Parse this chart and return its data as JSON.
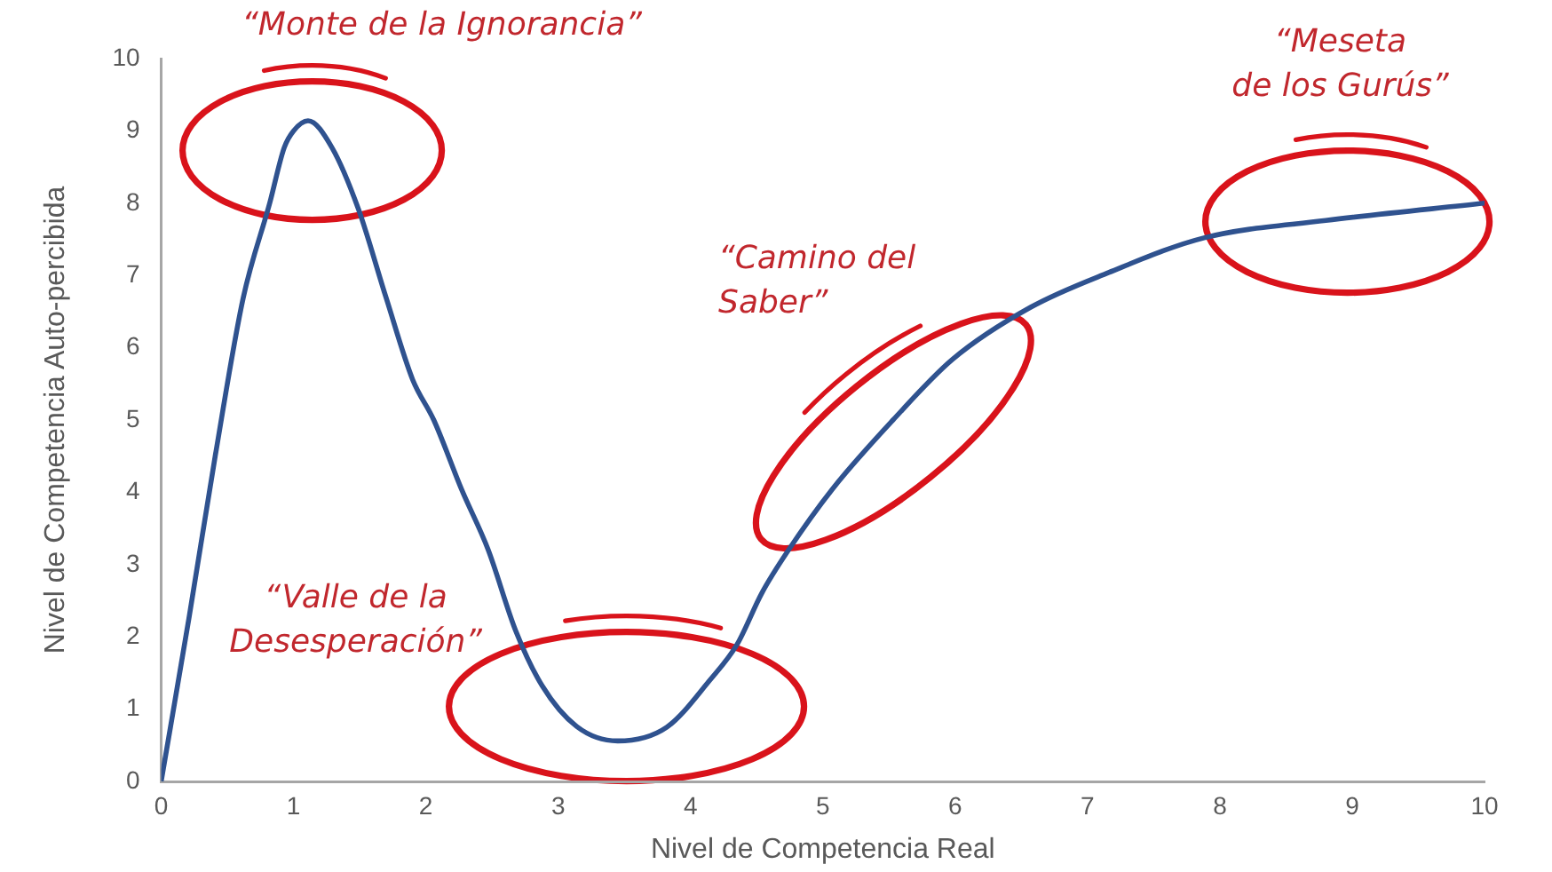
{
  "chart_data": {
    "type": "line",
    "xlabel": "Nivel de Competencia Real",
    "ylabel": "Nivel de Competencia Auto-percibida",
    "x": [
      0,
      0.21,
      0.41,
      0.62,
      0.82,
      0.93,
      1.0,
      1.11,
      1.29,
      1.49,
      1.7,
      1.9,
      2.06,
      2.27,
      2.47,
      2.68,
      2.88,
      3.14,
      3.45,
      3.82,
      4.15,
      4.35,
      4.54,
      4.74,
      5.07,
      5.53,
      5.98,
      6.57,
      7.16,
      7.88,
      8.8,
      10
    ],
    "values": [
      0,
      2.26,
      4.52,
      6.69,
      8.0,
      8.77,
      9.0,
      9.14,
      8.77,
      7.92,
      6.69,
      5.56,
      5.0,
      4.04,
      3.21,
      2.08,
      1.32,
      0.76,
      0.56,
      0.75,
      1.41,
      1.89,
      2.61,
      3.2,
      4.04,
      5.0,
      5.84,
      6.56,
      7.04,
      7.52,
      7.76,
      8.0
    ],
    "color": "#2f528f",
    "xlim": [
      0,
      10
    ],
    "ylim": [
      0,
      10
    ],
    "xticks": [
      0,
      1,
      2,
      3,
      4,
      5,
      6,
      7,
      8,
      9,
      10
    ],
    "yticks": [
      0,
      1,
      2,
      3,
      4,
      5,
      6,
      7,
      8,
      9,
      10
    ],
    "grid": false,
    "legend": false,
    "marker": "none",
    "line_style": "solid",
    "annotations": [
      "“Monte de la Ignorancia”",
      "“Valle de la\nDesesperación”",
      "“Camino del\nSaber”",
      "“Meseta\nde los Gurús”"
    ]
  }
}
